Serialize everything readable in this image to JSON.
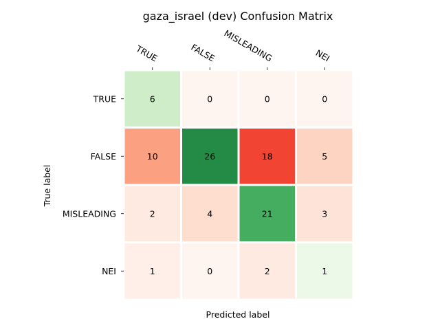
{
  "chart_data": {
    "type": "heatmap",
    "title": "gaza_israel (dev) Confusion Matrix",
    "xlabel": "Predicted label",
    "ylabel": "True label",
    "x_categories": [
      "TRUE",
      "FALSE",
      "MISLEADING",
      "NEI"
    ],
    "y_categories": [
      "TRUE",
      "FALSE",
      "MISLEADING",
      "NEI"
    ],
    "matrix": [
      [
        6,
        0,
        0,
        0
      ],
      [
        10,
        26,
        18,
        5
      ],
      [
        2,
        4,
        21,
        3
      ],
      [
        1,
        0,
        2,
        1
      ]
    ],
    "colormap": {
      "diagonal": "greens",
      "off_diagonal": "reds"
    },
    "x_ticks_position": "top",
    "grid": false
  }
}
